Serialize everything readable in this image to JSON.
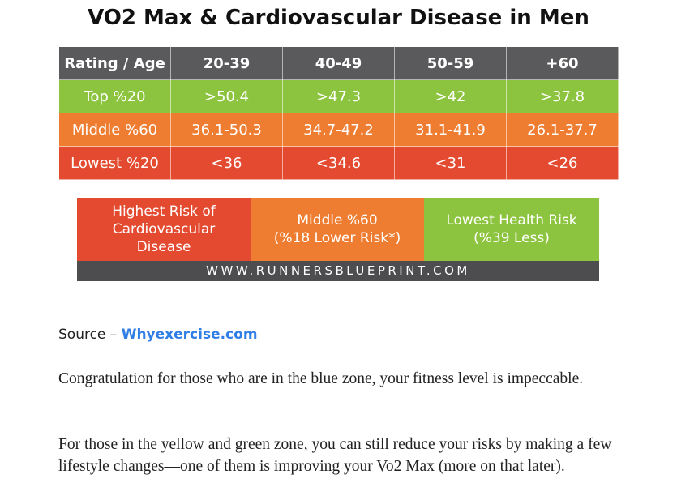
{
  "title": "VO2 Max & Cardiovascular Disease in Men",
  "table": {
    "headers": [
      "Rating / Age",
      "20-39",
      "40-49",
      "50-59",
      "+60"
    ],
    "rows": [
      {
        "label": "Top %20",
        "values": [
          ">50.4",
          ">47.3",
          ">42",
          ">37.8"
        ],
        "color": "#8dc43f"
      },
      {
        "label": "Middle %60",
        "values": [
          "36.1-50.3",
          "34.7-47.2",
          "31.1-41.9",
          "26.1-37.7"
        ],
        "color": "#ee7d31"
      },
      {
        "label": "Lowest %20",
        "values": [
          "<36",
          "<34.6",
          "<31",
          "<26"
        ],
        "color": "#e34a2f"
      }
    ]
  },
  "legend": {
    "high": {
      "line1": "Highest Risk of",
      "line2": "Cardiovascular",
      "line3": "Disease",
      "color": "#e34a2f"
    },
    "mid": {
      "line1": "Middle %60",
      "line2": "(%18 Lower Risk*)",
      "color": "#ee7d31"
    },
    "low": {
      "line1": "Lowest Health Risk",
      "line2": "(%39 Less)",
      "color": "#8dc43f"
    },
    "footer": "WWW.RUNNERSBLUEPRINT.COM"
  },
  "source": {
    "prefix": "Source – ",
    "link_text": "Whyexercise.com",
    "link_color": "#2f7ee6"
  },
  "paragraphs": [
    "Congratulation for those who are in the blue zone, your fitness level is impeccable.",
    "For those in the yellow and green zone, you can still reduce your risks by making a few lifestyle changes—one of them is improving your Vo2 Max (more on that later)."
  ]
}
